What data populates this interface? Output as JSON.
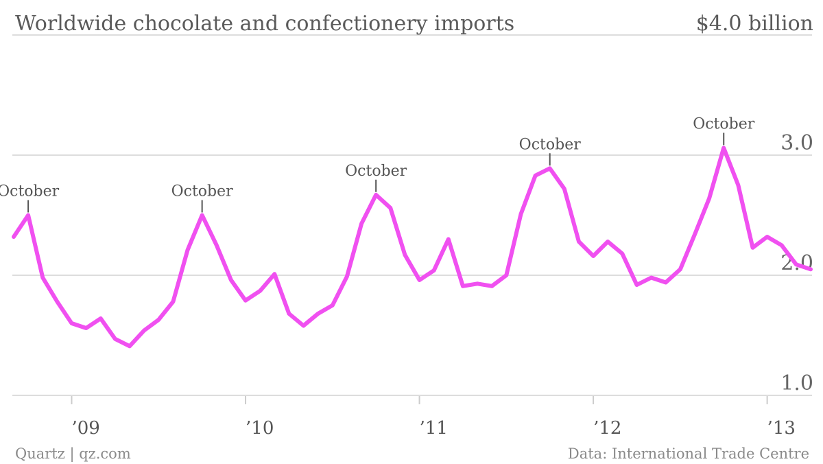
{
  "header": {
    "title": "Worldwide chocolate and confectionery imports",
    "top_value_label": "$4.0 billion"
  },
  "footer": {
    "source_left": "Quartz | qz.com",
    "source_right": "Data: International Trade Centre"
  },
  "colors": {
    "line": "#f050f0",
    "grid": "#dddddd",
    "annotation_tick": "#555555"
  },
  "chart_data": {
    "type": "line",
    "title": "Worldwide chocolate and confectionery imports",
    "xlabel": "",
    "ylabel": "",
    "ylim": [
      1.0,
      4.0
    ],
    "ytick_values": [
      1.0,
      2.0,
      3.0,
      4.0
    ],
    "ytick_labels": [
      "1.0",
      "2.0",
      "3.0",
      "$4.0 billion"
    ],
    "grid": true,
    "xtick_labels": [
      "’09",
      "’10",
      "’11",
      "’12",
      "’13"
    ],
    "x": [
      "2008-09",
      "2008-10",
      "2008-11",
      "2008-12",
      "2009-01",
      "2009-02",
      "2009-03",
      "2009-04",
      "2009-05",
      "2009-06",
      "2009-07",
      "2009-08",
      "2009-09",
      "2009-10",
      "2009-11",
      "2009-12",
      "2010-01",
      "2010-02",
      "2010-03",
      "2010-04",
      "2010-05",
      "2010-06",
      "2010-07",
      "2010-08",
      "2010-09",
      "2010-10",
      "2010-11",
      "2010-12",
      "2011-01",
      "2011-02",
      "2011-03",
      "2011-04",
      "2011-05",
      "2011-06",
      "2011-07",
      "2011-08",
      "2011-09",
      "2011-10",
      "2011-11",
      "2011-12",
      "2012-01",
      "2012-02",
      "2012-03",
      "2012-04",
      "2012-05",
      "2012-06",
      "2012-07",
      "2012-08",
      "2012-09",
      "2012-10",
      "2012-11",
      "2012-12",
      "2013-01",
      "2013-02",
      "2013-03",
      "2013-04"
    ],
    "series": [
      {
        "values": [
          2.32,
          2.5,
          1.98,
          1.78,
          1.6,
          1.56,
          1.64,
          1.47,
          1.41,
          1.54,
          1.63,
          1.78,
          2.21,
          2.5,
          2.25,
          1.96,
          1.79,
          1.87,
          2.01,
          1.68,
          1.58,
          1.68,
          1.75,
          1.99,
          2.43,
          2.67,
          2.56,
          2.17,
          1.96,
          2.04,
          2.3,
          1.91,
          1.93,
          1.91,
          2.0,
          2.51,
          2.83,
          2.89,
          2.72,
          2.28,
          2.16,
          2.28,
          2.18,
          1.92,
          1.98,
          1.94,
          2.05,
          2.34,
          2.64,
          3.06,
          2.75,
          2.23,
          2.32,
          2.25,
          2.09,
          2.05
        ]
      }
    ],
    "annotations": [
      {
        "x": "2008-10",
        "text": "October"
      },
      {
        "x": "2009-10",
        "text": "October"
      },
      {
        "x": "2010-10",
        "text": "October"
      },
      {
        "x": "2011-10",
        "text": "October"
      },
      {
        "x": "2012-10",
        "text": "October"
      }
    ]
  }
}
